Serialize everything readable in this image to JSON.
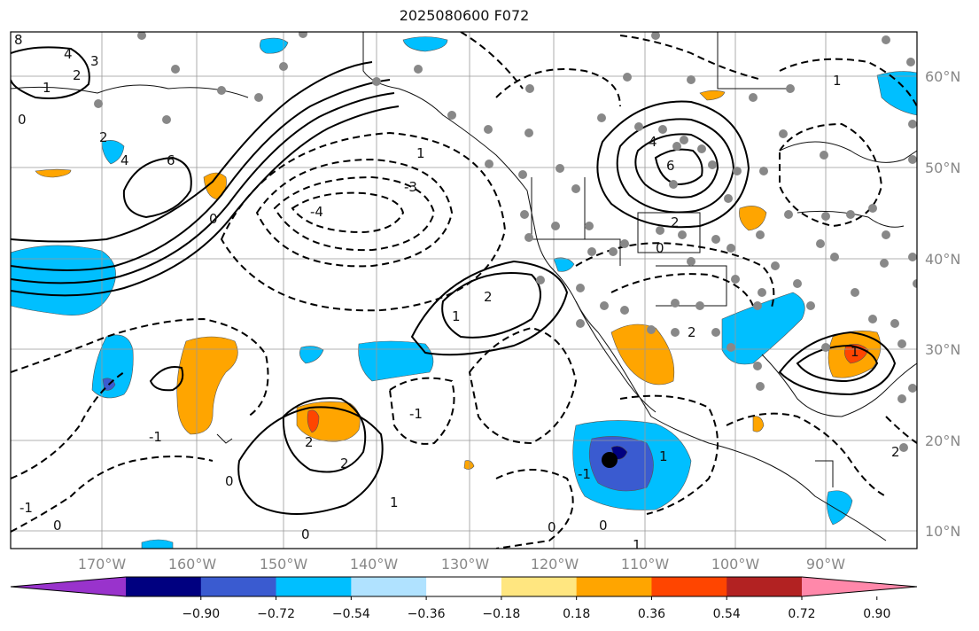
{
  "title": "2025080600 F072",
  "lat_labels": [
    "60°N",
    "50°N",
    "40°N",
    "30°N",
    "20°N",
    "10°N"
  ],
  "lon_labels": [
    "170°W",
    "160°W",
    "150°W",
    "140°W",
    "130°W",
    "120°W",
    "110°W",
    "100°W",
    "90°W"
  ],
  "colorbar": {
    "ticks": [
      "−0.90",
      "−0.72",
      "−0.54",
      "−0.36",
      "−0.18",
      "0.18",
      "0.36",
      "0.54",
      "0.72",
      "0.90"
    ],
    "colors": [
      "#9933cc",
      "#000080",
      "#3a5bd0",
      "#00bfff",
      "#b0e2ff",
      "#ffffff",
      "#ffe680",
      "#ffa500",
      "#ff4500",
      "#b22222",
      "#ff88aa"
    ]
  },
  "contour_labels": [
    "8",
    "4",
    "3",
    "2",
    "1",
    "0",
    "2",
    "4",
    "6",
    "-3",
    "-4",
    "1",
    "0",
    "2",
    "6",
    "4",
    "2",
    "0",
    "1",
    "2",
    "1",
    "-1",
    "-1",
    "2",
    "0",
    "0",
    "2",
    "1",
    "-1",
    "0",
    "1",
    "-1",
    "0",
    "0",
    "1",
    "1",
    "2"
  ]
}
